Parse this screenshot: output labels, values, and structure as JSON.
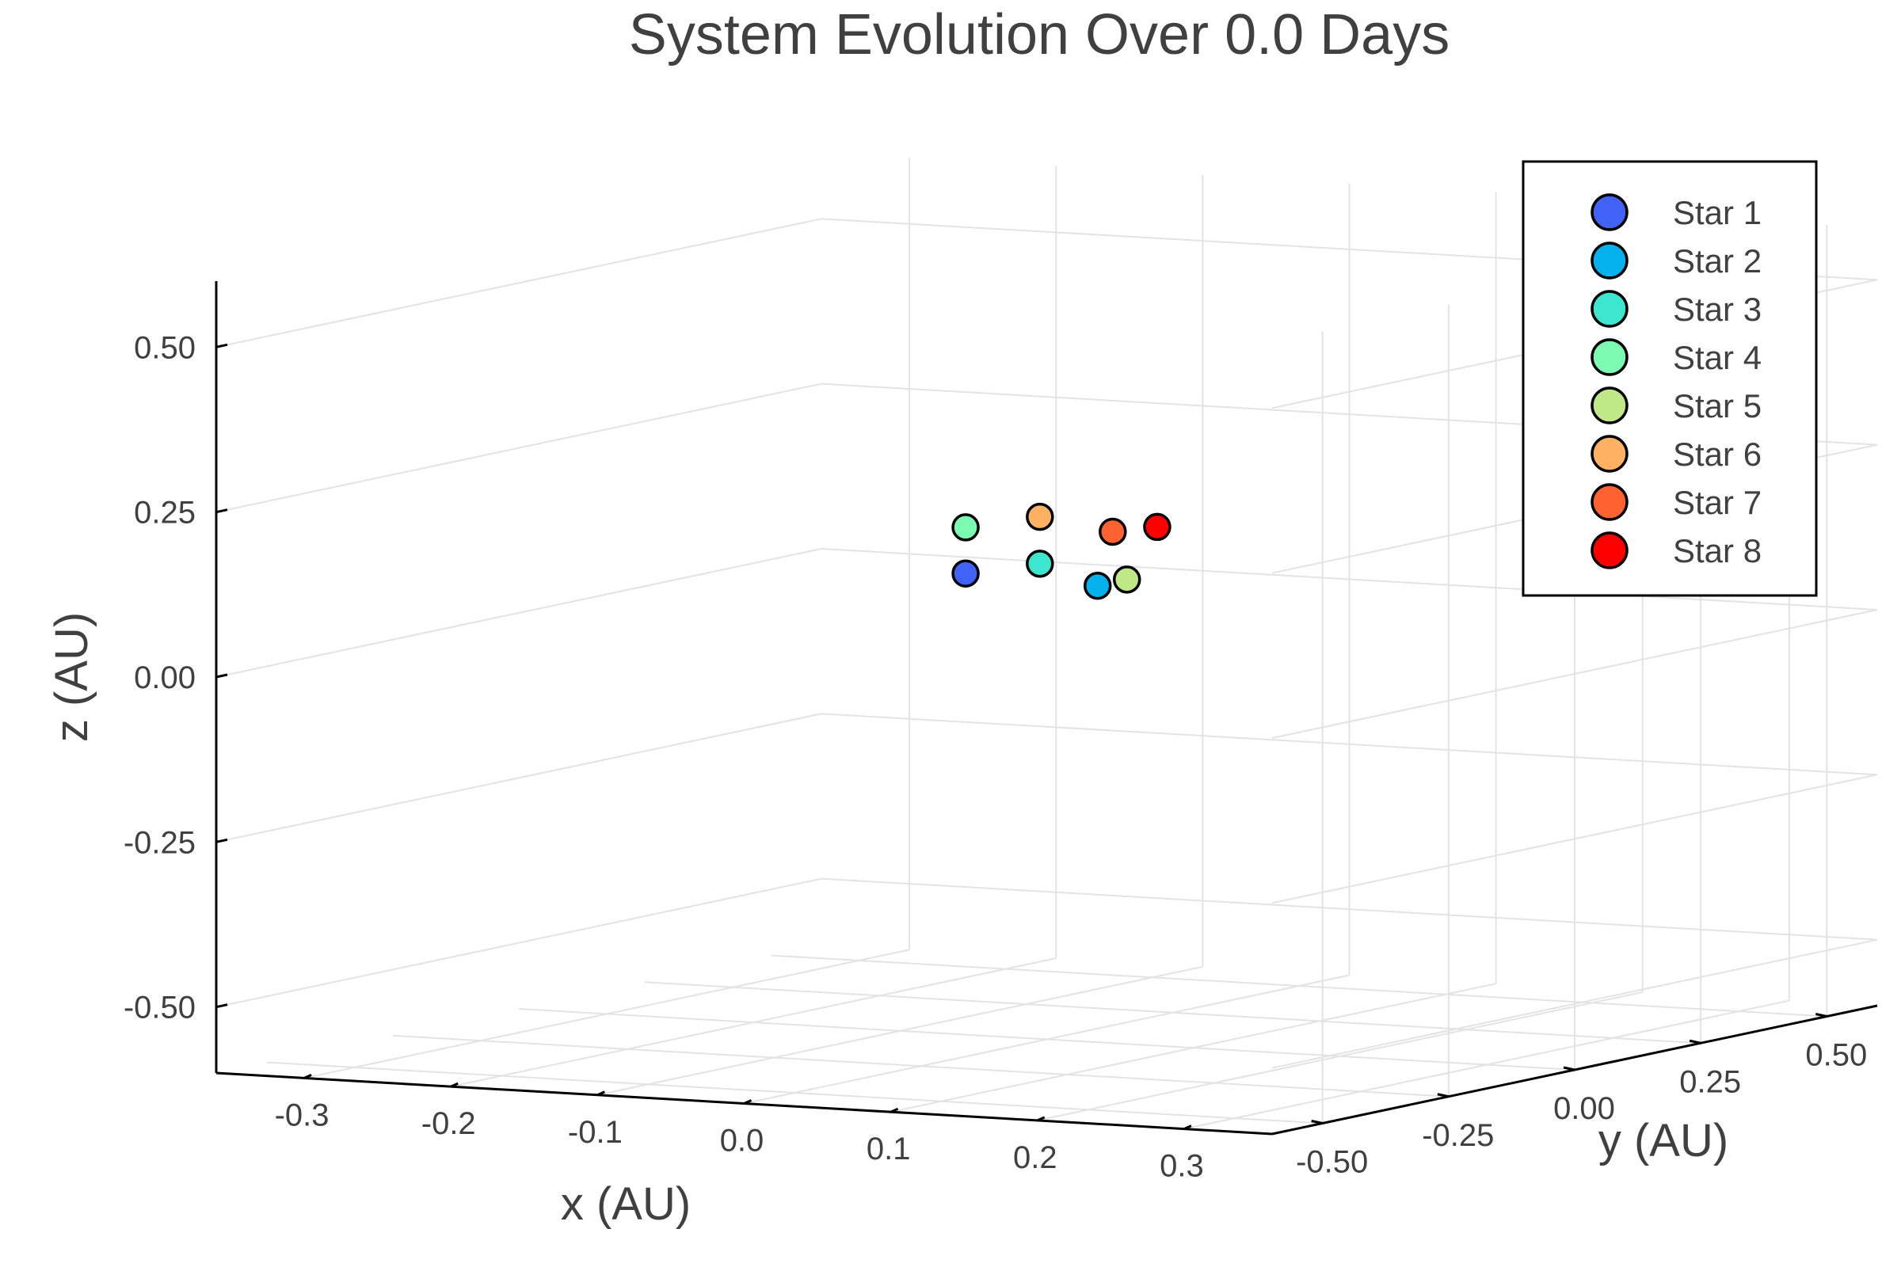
{
  "chart_data": {
    "type": "scatter",
    "title": "System Evolution Over 0.0 Days",
    "xlabel": "x (AU)",
    "ylabel": "y (AU)",
    "zlabel": "z (AU)",
    "x_ticks": [
      "-0.3",
      "-0.2",
      "-0.1",
      "0.0",
      "0.1",
      "0.2",
      "0.3"
    ],
    "y_ticks": [
      "-0.50",
      "-0.25",
      "0.00",
      "0.25",
      "0.50"
    ],
    "z_ticks": [
      "-0.50",
      "-0.25",
      "0.00",
      "0.25",
      "0.50"
    ],
    "xlim": [
      -0.36,
      0.36
    ],
    "ylim": [
      -0.6,
      0.6
    ],
    "zlim": [
      -0.6,
      0.6
    ],
    "grid": true,
    "legend_position": "top-right",
    "series": [
      {
        "name": "Star 1",
        "color": "#4062f6",
        "x": -0.045,
        "y": -0.03,
        "z": 0.105
      },
      {
        "name": "Star 2",
        "color": "#03b1ec",
        "x": 0.045,
        "y": -0.03,
        "z": 0.098
      },
      {
        "name": "Star 3",
        "color": "#3de6cf",
        "x": -0.015,
        "y": 0.03,
        "z": 0.114
      },
      {
        "name": "Star 4",
        "color": "#7dfab1",
        "x": -0.045,
        "y": -0.03,
        "z": 0.175
      },
      {
        "name": "Star 5",
        "color": "#bfe986",
        "x": 0.065,
        "y": -0.03,
        "z": 0.11
      },
      {
        "name": "Star 6",
        "color": "#ffb163",
        "x": -0.015,
        "y": 0.03,
        "z": 0.185
      },
      {
        "name": "Star 7",
        "color": "#ff6231",
        "x": 0.045,
        "y": 0.0,
        "z": 0.175
      },
      {
        "name": "Star 8",
        "color": "#fe0000",
        "x": 0.065,
        "y": 0.03,
        "z": 0.18
      }
    ]
  }
}
